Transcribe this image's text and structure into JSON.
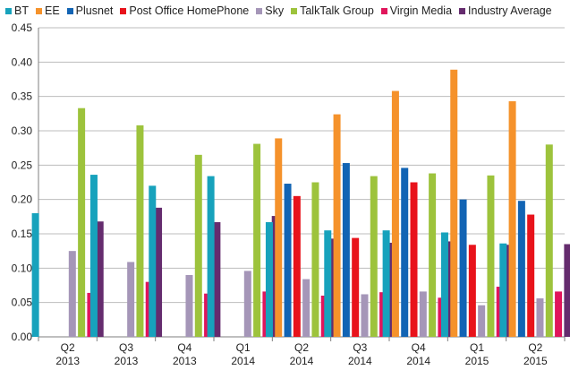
{
  "chart_data": {
    "type": "bar",
    "title": "",
    "xlabel": "",
    "ylabel": "",
    "ylim": [
      0,
      0.45
    ],
    "yticks": [
      "0.00",
      "0.05",
      "0.10",
      "0.15",
      "0.20",
      "0.25",
      "0.30",
      "0.35",
      "0.40",
      "0.45"
    ],
    "grid": true,
    "legend_position": "top",
    "categories": [
      {
        "quarter": "Q2",
        "year": "2013"
      },
      {
        "quarter": "Q3",
        "year": "2013"
      },
      {
        "quarter": "Q4",
        "year": "2013"
      },
      {
        "quarter": "Q1",
        "year": "2014"
      },
      {
        "quarter": "Q2",
        "year": "2014"
      },
      {
        "quarter": "Q3",
        "year": "2014"
      },
      {
        "quarter": "Q4",
        "year": "2014"
      },
      {
        "quarter": "Q1",
        "year": "2015"
      },
      {
        "quarter": "Q2",
        "year": "2015"
      }
    ],
    "series": [
      {
        "name": "BT",
        "color": "#17a2bc",
        "values": [
          0.18,
          0.236,
          0.22,
          0.234,
          0.167,
          0.155,
          0.155,
          0.152,
          0.136
        ]
      },
      {
        "name": "EE",
        "color": "#f5922b",
        "values": [
          null,
          null,
          null,
          null,
          0.289,
          0.324,
          0.358,
          0.389,
          0.343
        ]
      },
      {
        "name": "Plusnet",
        "color": "#1264b4",
        "values": [
          null,
          null,
          null,
          null,
          0.223,
          0.253,
          0.246,
          0.2,
          0.198
        ]
      },
      {
        "name": "Post Office HomePhone",
        "color": "#e8131b",
        "values": [
          null,
          null,
          null,
          null,
          0.205,
          0.144,
          0.225,
          0.134,
          0.178
        ]
      },
      {
        "name": "Sky",
        "color": "#a596b8",
        "values": [
          0.125,
          0.109,
          0.09,
          0.096,
          0.084,
          0.062,
          0.066,
          0.046,
          0.056
        ]
      },
      {
        "name": "TalkTalk Group",
        "color": "#9dc33c",
        "values": [
          0.333,
          0.308,
          0.265,
          0.281,
          0.225,
          0.234,
          0.238,
          0.235,
          0.28
        ]
      },
      {
        "name": "Virgin Media",
        "color": "#e0155b",
        "values": [
          0.064,
          0.08,
          0.063,
          0.066,
          0.06,
          0.065,
          0.057,
          0.073,
          0.066
        ]
      },
      {
        "name": "Industry Average",
        "color": "#652c6e",
        "values": [
          0.168,
          0.188,
          0.167,
          0.176,
          0.143,
          0.137,
          0.139,
          0.134,
          0.135
        ]
      }
    ]
  }
}
